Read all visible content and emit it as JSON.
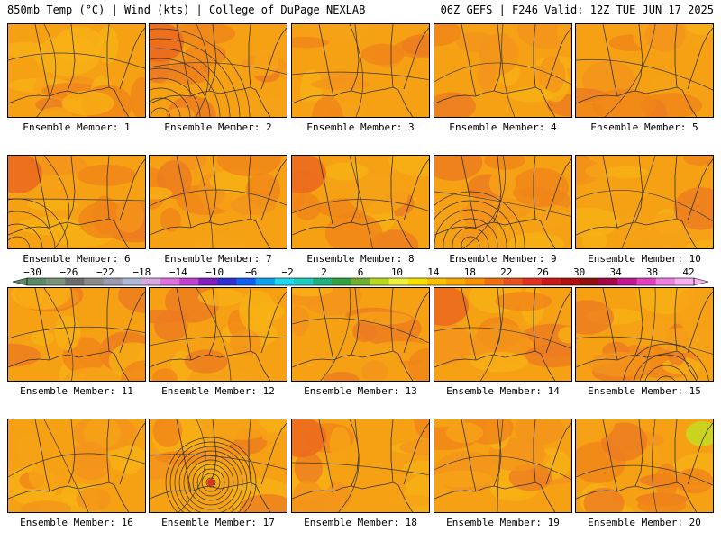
{
  "header": {
    "left": "850mb Temp (°C) | Wind (kts) | College of DuPage NEXLAB",
    "right": "06Z GEFS | F246 Valid: 12Z TUE JUN 17 2025"
  },
  "members": [
    {
      "label": "Ensemble Member: 1"
    },
    {
      "label": "Ensemble Member: 2"
    },
    {
      "label": "Ensemble Member: 3"
    },
    {
      "label": "Ensemble Member: 4"
    },
    {
      "label": "Ensemble Member: 5"
    },
    {
      "label": "Ensemble Member: 6"
    },
    {
      "label": "Ensemble Member: 7"
    },
    {
      "label": "Ensemble Member: 8"
    },
    {
      "label": "Ensemble Member: 9"
    },
    {
      "label": "Ensemble Member: 10"
    },
    {
      "label": "Ensemble Member: 11"
    },
    {
      "label": "Ensemble Member: 12"
    },
    {
      "label": "Ensemble Member: 13"
    },
    {
      "label": "Ensemble Member: 14"
    },
    {
      "label": "Ensemble Member: 15"
    },
    {
      "label": "Ensemble Member: 16"
    },
    {
      "label": "Ensemble Member: 17"
    },
    {
      "label": "Ensemble Member: 18"
    },
    {
      "label": "Ensemble Member: 19"
    },
    {
      "label": "Ensemble Member: 20"
    }
  ],
  "colorbar": {
    "tick_labels": [
      "−30",
      "−26",
      "−22",
      "−18",
      "−14",
      "−10",
      "−6",
      "−2",
      "2",
      "6",
      "10",
      "14",
      "18",
      "22",
      "26",
      "30",
      "34",
      "38",
      "42"
    ],
    "colors": [
      "#5a8a66",
      "#7a927a",
      "#6c6c6c",
      "#8a8a8a",
      "#9a9ab0",
      "#b0b8d8",
      "#d8a8e0",
      "#e070e0",
      "#c040d0",
      "#8020c0",
      "#3030d0",
      "#1060f0",
      "#10a0f0",
      "#20d8f0",
      "#20c8c0",
      "#20b080",
      "#30a040",
      "#70b030",
      "#b8d820",
      "#f0f040",
      "#f8e000",
      "#f8c000",
      "#f8a800",
      "#f89000",
      "#f07010",
      "#e85020",
      "#e03020",
      "#c81818",
      "#b01010",
      "#901010",
      "#a00848",
      "#c01890",
      "#e040c0",
      "#f080e0",
      "#f8b0f0"
    ]
  }
}
